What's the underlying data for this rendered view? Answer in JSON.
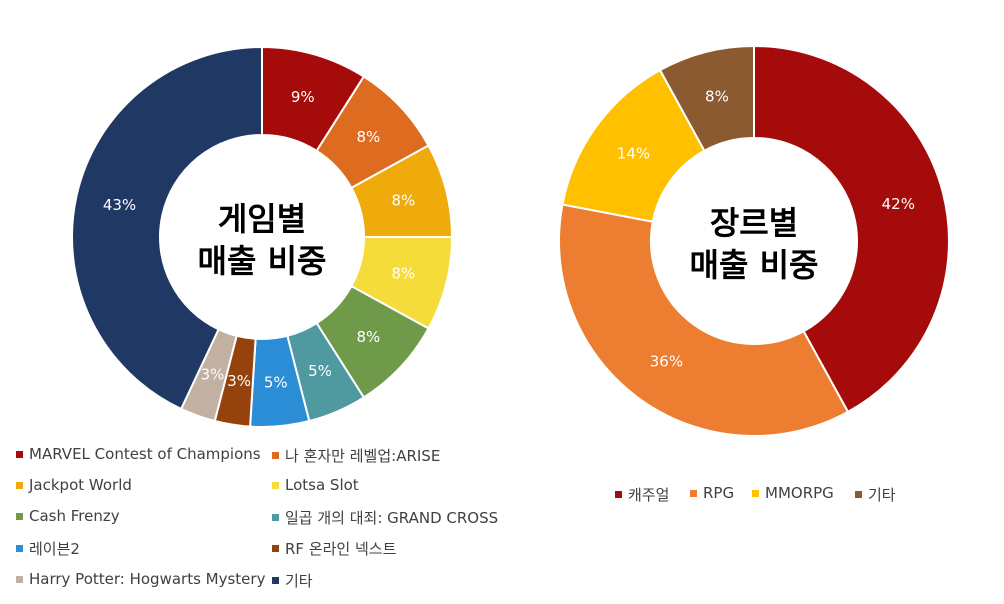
{
  "chart_data": [
    {
      "type": "pie",
      "subtype": "donut",
      "title_lines": [
        "게임별",
        "매출 비중"
      ],
      "categories": [
        "MARVEL Contest of Champions",
        "나 혼자만 레벨업:ARISE",
        "Jackpot World",
        "Lotsa Slot",
        "Cash Frenzy",
        "일곱 개의 대죄: GRAND CROSS",
        "레이븐2",
        "RF 온라인 넥스트",
        "Harry Potter: Hogwarts Mystery",
        "기타"
      ],
      "values": [
        9,
        8,
        8,
        8,
        8,
        5,
        5,
        3,
        3,
        43
      ],
      "labels": [
        "9%",
        "8%",
        "8%",
        "8%",
        "8%",
        "5%",
        "5%",
        "3%",
        "3%",
        "43%"
      ],
      "colors": [
        "#A50B0B",
        "#DD6B20",
        "#EFAA0B",
        "#F6DC3A",
        "#6F9A4A",
        "#4E9AA0",
        "#2A8DD6",
        "#96420C",
        "#C2B0A3",
        "#1F3864"
      ],
      "legend_position": "bottom"
    },
    {
      "type": "pie",
      "subtype": "donut",
      "title_lines": [
        "장르별",
        "매출 비중"
      ],
      "categories": [
        "캐주얼",
        "RPG",
        "MMORPG",
        "기타"
      ],
      "values": [
        42,
        36,
        14,
        8
      ],
      "labels": [
        "42%",
        "36%",
        "14%",
        "8%"
      ],
      "colors": [
        "#A50B0B",
        "#ED7D31",
        "#FFC000",
        "#8B5A30"
      ],
      "legend_position": "bottom"
    }
  ]
}
